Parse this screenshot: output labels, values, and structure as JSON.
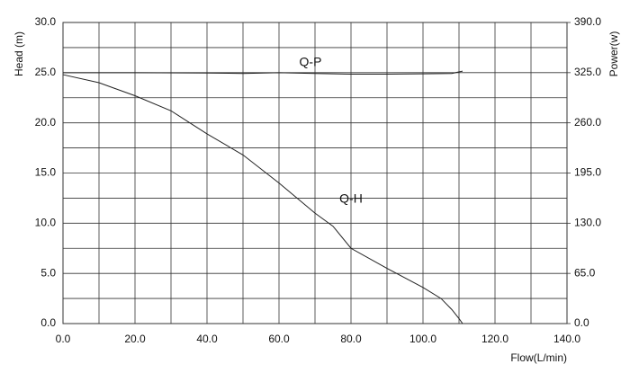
{
  "chart_data": {
    "type": "line",
    "xlabel": "Flow(L/min)",
    "ylabel": "Head (m)",
    "y2label": "Power(w)",
    "xlim": [
      0,
      140
    ],
    "xticks": [
      {
        "value": 0,
        "label": "0.0"
      },
      {
        "value": 20,
        "label": "20.0"
      },
      {
        "value": 40,
        "label": "40.0"
      },
      {
        "value": 60,
        "label": "60.0"
      },
      {
        "value": 80,
        "label": "80.0"
      },
      {
        "value": 100,
        "label": "100.0"
      },
      {
        "value": 120,
        "label": "120.0"
      },
      {
        "value": 140,
        "label": "140.0"
      }
    ],
    "ylim": [
      0,
      30
    ],
    "yticks": [
      {
        "value": 0,
        "label": "0.0"
      },
      {
        "value": 5,
        "label": "5.0"
      },
      {
        "value": 10,
        "label": "10.0"
      },
      {
        "value": 15,
        "label": "15.0"
      },
      {
        "value": 20,
        "label": "20.0"
      },
      {
        "value": 25,
        "label": "25.0"
      },
      {
        "value": 30,
        "label": "30.0"
      }
    ],
    "y2lim": [
      0,
      390
    ],
    "y2ticks": [
      {
        "value": 0,
        "label": "0.0"
      },
      {
        "value": 65,
        "label": "65.0"
      },
      {
        "value": 130,
        "label": "130.0"
      },
      {
        "value": 195,
        "label": "195.0"
      },
      {
        "value": 260,
        "label": "260.0"
      },
      {
        "value": 325,
        "label": "325.0"
      },
      {
        "value": 390,
        "label": "390.0"
      }
    ],
    "grid": true,
    "minor_grid": true,
    "series": [
      {
        "name": "Q-H",
        "color": "#222222",
        "x": [
          0,
          10,
          20,
          30,
          40,
          50,
          60,
          70,
          75,
          80,
          90,
          100,
          105,
          108,
          110,
          111
        ],
        "values": [
          24.8,
          24,
          22.7,
          21.2,
          18.9,
          16.8,
          14,
          11,
          9.7,
          7.5,
          5.5,
          3.6,
          2.5,
          1.4,
          0.5,
          0
        ]
      },
      {
        "name": "Q-P",
        "color": "#222222",
        "axis": "y2",
        "x": [
          0,
          20,
          40,
          50,
          60,
          70,
          80,
          90,
          100,
          108,
          111
        ],
        "values": [
          325,
          325,
          324.5,
          324,
          325,
          324,
          323,
          323,
          323.5,
          324,
          327
        ]
      }
    ]
  }
}
